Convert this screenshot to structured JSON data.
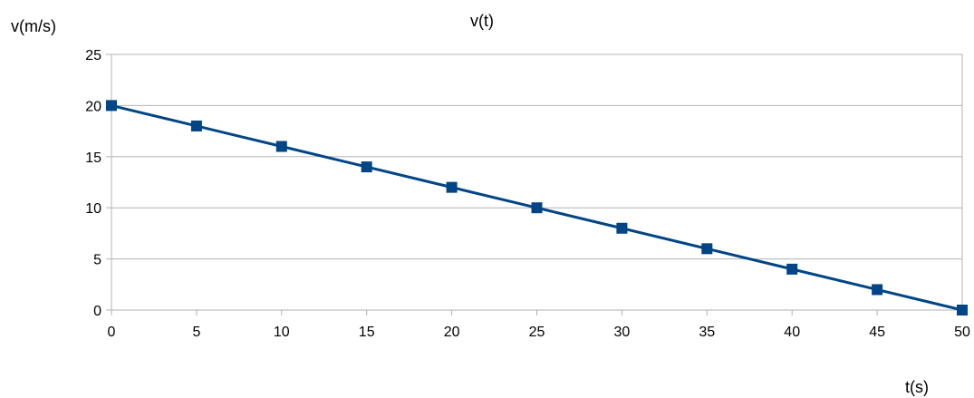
{
  "chart_data": {
    "type": "line",
    "title": "v(t)",
    "xlabel": "t(s)",
    "ylabel": "v(m/s)",
    "x": [
      0,
      5,
      10,
      15,
      20,
      25,
      30,
      35,
      40,
      45,
      50
    ],
    "series": [
      {
        "values": [
          20,
          18,
          16,
          14,
          12,
          10,
          8,
          6,
          4,
          2,
          0
        ],
        "color": "#004586"
      }
    ],
    "xlim": [
      0,
      50
    ],
    "ylim": [
      0,
      25
    ],
    "xticks": [
      "0",
      "5",
      "10",
      "15",
      "20",
      "25",
      "30",
      "35",
      "40",
      "45",
      "50"
    ],
    "yticks": [
      "0",
      "5",
      "10",
      "15",
      "20",
      "25"
    ],
    "grid": "horizontal",
    "marker": "square",
    "legend": "none"
  }
}
